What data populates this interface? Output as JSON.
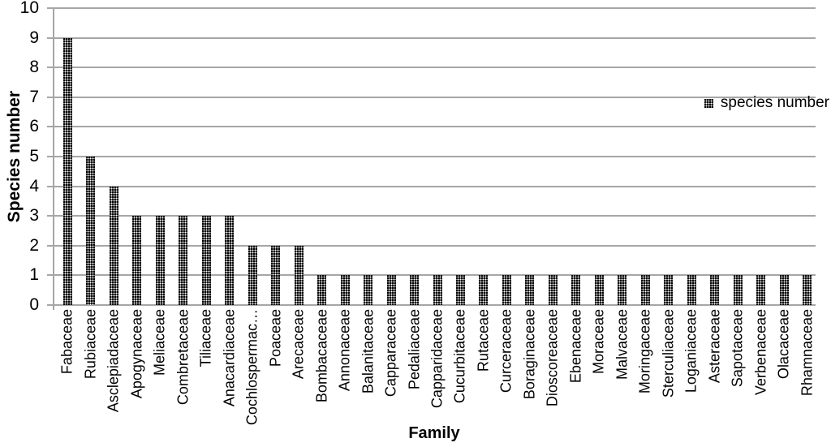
{
  "chart_data": {
    "type": "bar",
    "title": "",
    "xlabel": "Family",
    "ylabel": "Species number",
    "ylim": [
      0,
      10
    ],
    "yticks": [
      0,
      1,
      2,
      3,
      4,
      5,
      6,
      7,
      8,
      9,
      10
    ],
    "grid": true,
    "legend": {
      "label": "species number",
      "position": "right",
      "marker": "dotted-pattern-swatch"
    },
    "colors": {
      "bar_fill": "#000000",
      "bar_pattern": "white-dot-grid",
      "gridline": "#a6a6a6",
      "text": "#000000",
      "background": "#ffffff"
    },
    "categories": [
      "Fabaceae",
      "Rubiaceae",
      "Asclepiadaceae",
      "Apogynaceae",
      "Meliaceae",
      "Combretaceae",
      "Tiliaceae",
      "Anacardiaceae",
      "Cochlospermac…",
      "Poaceae",
      "Arecaceae",
      "Bombacaceae",
      "Annonaceae",
      "Balanitaceae",
      "Capparaceae",
      "Pedaliaceae",
      "Capparidaceae",
      "Cucurbitaceae",
      "Rutaceae",
      "Curceraceae",
      "Boraginaceae",
      "Dioscoreaceae",
      "Ebenaceae",
      "Moraceae",
      "Malvaceae",
      "Moringaceae",
      "Sterculiaceae",
      "Loganiaceae",
      "Asteraceae",
      "Sapotaceae",
      "Verbenaceae",
      "Olacaceae",
      "Rhamnaceae"
    ],
    "values": [
      9,
      5,
      4,
      3,
      3,
      3,
      3,
      3,
      2,
      2,
      2,
      1,
      1,
      1,
      1,
      1,
      1,
      1,
      1,
      1,
      1,
      1,
      1,
      1,
      1,
      1,
      1,
      1,
      1,
      1,
      1,
      1,
      1
    ]
  }
}
